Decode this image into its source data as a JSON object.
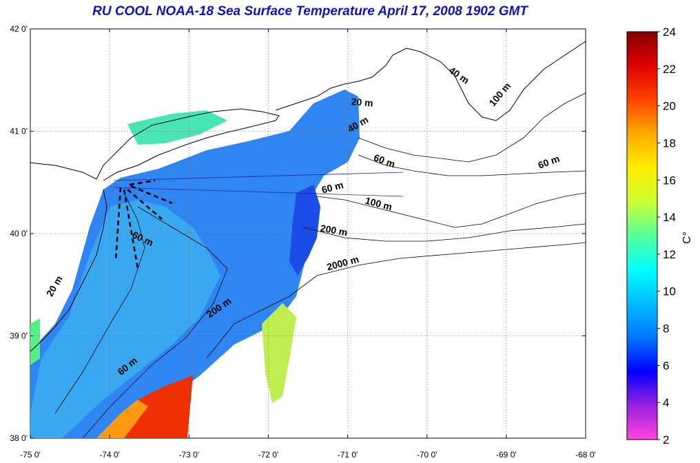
{
  "title": "RU COOL  NOAA-18 Sea Surface Temperature April 17, 2008 1902 GMT",
  "map": {
    "lon_range": [
      -75,
      -68
    ],
    "lat_range": [
      38,
      42
    ],
    "lon_ticks": [
      {
        "value": -75,
        "label": "-75 0'"
      },
      {
        "value": -74,
        "label": "-74 0'"
      },
      {
        "value": -73,
        "label": "-73 0'"
      },
      {
        "value": -72,
        "label": "-72 0'"
      },
      {
        "value": -71,
        "label": "-71 0'"
      },
      {
        "value": -70,
        "label": "-70 0'"
      },
      {
        "value": -69,
        "label": "-69 0'"
      },
      {
        "value": -68,
        "label": "-68 0'"
      }
    ],
    "lat_ticks": [
      {
        "value": 42,
        "label": "42 0'"
      },
      {
        "value": 41,
        "label": "41 0'"
      },
      {
        "value": 40,
        "label": "40 0'"
      },
      {
        "value": 39,
        "label": "39 0'"
      },
      {
        "value": 38,
        "label": "38 0'"
      }
    ],
    "grid": "dotted",
    "contour_labels": [
      {
        "text": "20 m",
        "lon": -70.82,
        "lat": 41.25,
        "angle": 5
      },
      {
        "text": "40 m",
        "lon": -70.85,
        "lat": 41.04,
        "angle": -30
      },
      {
        "text": "40 m",
        "lon": -69.62,
        "lat": 41.52,
        "angle": 35
      },
      {
        "text": "100 m",
        "lon": -69.05,
        "lat": 41.34,
        "angle": -50
      },
      {
        "text": "60 m",
        "lon": -70.55,
        "lat": 40.68,
        "angle": 20
      },
      {
        "text": "60 m",
        "lon": -68.45,
        "lat": 40.67,
        "angle": -20
      },
      {
        "text": "60 m",
        "lon": -71.18,
        "lat": 40.42,
        "angle": -15
      },
      {
        "text": "100 m",
        "lon": -70.62,
        "lat": 40.26,
        "angle": 15
      },
      {
        "text": "200 m",
        "lon": -71.18,
        "lat": 40.0,
        "angle": 10
      },
      {
        "text": "2000 m",
        "lon": -71.05,
        "lat": 39.68,
        "angle": -15
      },
      {
        "text": "60 m",
        "lon": -73.6,
        "lat": 39.92,
        "angle": 25
      },
      {
        "text": "20 m",
        "lon": -74.66,
        "lat": 39.47,
        "angle": -60
      },
      {
        "text": "200 m",
        "lon": -72.6,
        "lat": 39.25,
        "angle": -35
      },
      {
        "text": "60 m",
        "lon": -73.75,
        "lat": 38.68,
        "angle": -40
      }
    ]
  },
  "colorbar": {
    "unit": "C°",
    "min": 2,
    "max": 24,
    "ticks": [
      "24",
      "22",
      "20",
      "18",
      "16",
      "14",
      "12",
      "10",
      "8",
      "6",
      "4",
      "2"
    ],
    "stops": [
      "#ff44dd",
      "#9922dd",
      "#0000ff",
      "#0077ff",
      "#00bbff",
      "#00ffff",
      "#55ff99",
      "#ccff33",
      "#ffee00",
      "#ffaa00",
      "#ff4400",
      "#dd0000",
      "#880000"
    ]
  },
  "colors": {
    "title": "#1010c8",
    "land_line": "#000000",
    "water_cool": "#2f7ff0",
    "water_warm": "#ee2800",
    "water_coastal": "#44e4b0"
  }
}
